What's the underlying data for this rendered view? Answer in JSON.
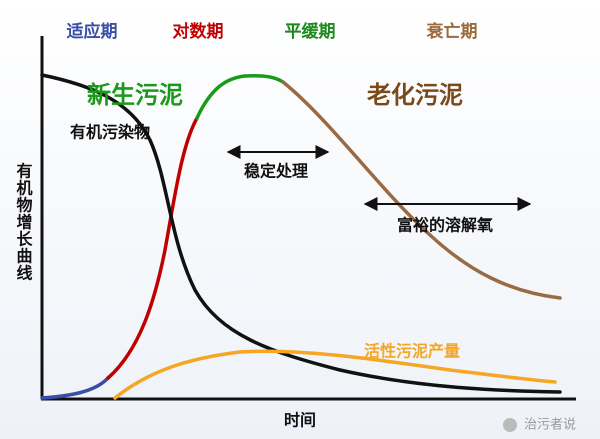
{
  "phases": [
    "适应期",
    "对数期",
    "平缓期",
    "衰亡期"
  ],
  "stages": {
    "new_sludge": "新生污泥",
    "aged_sludge": "老化污泥"
  },
  "curves": {
    "organic": "有机污染物",
    "sludge_yield": "活性污泥产量"
  },
  "annotations": {
    "stable": "稳定处理",
    "oxygen": "富裕的溶解氧"
  },
  "axes": {
    "y_label": "有机物增长曲线",
    "x_label": "时间"
  },
  "watermark": "治污者说"
}
